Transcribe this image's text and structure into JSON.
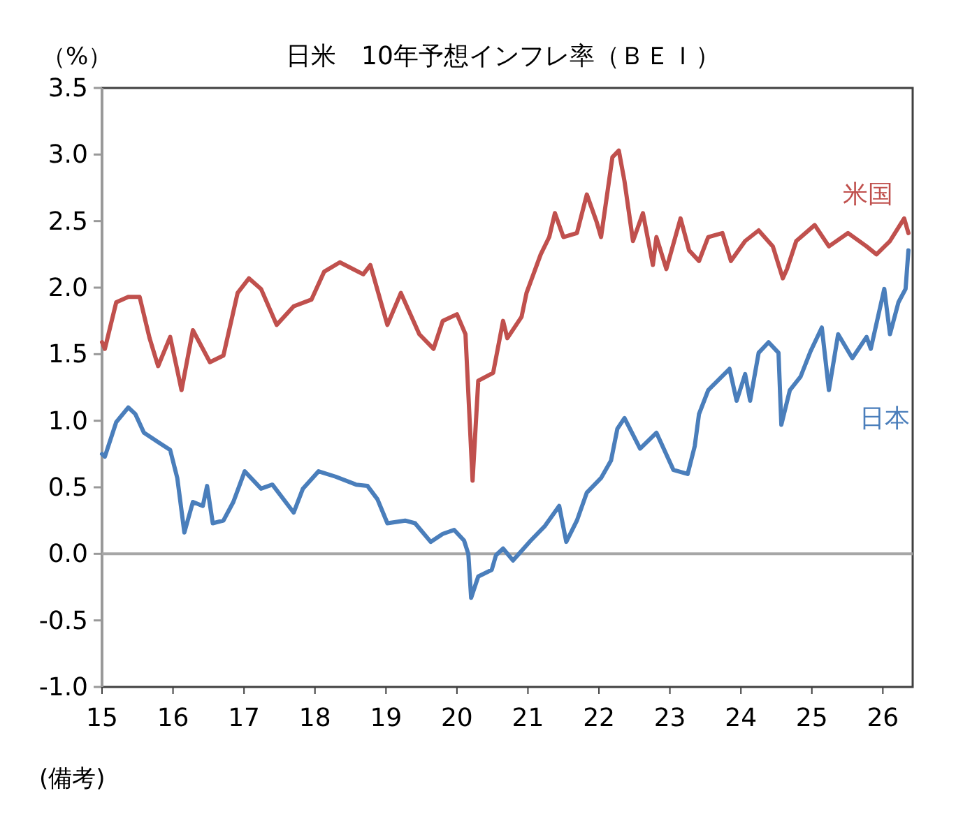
{
  "chart_data": {
    "type": "line",
    "title": "日米　10年予想インフレ率（ＢＥＩ）",
    "ylabel": "（%）",
    "xlim": [
      15,
      26.42
    ],
    "ylim": [
      -1.0,
      3.5
    ],
    "xticks": [
      15,
      16,
      17,
      18,
      19,
      20,
      21,
      22,
      23,
      24,
      25,
      26
    ],
    "yticks": [
      {
        "value": 3.5,
        "label": "3.5"
      },
      {
        "value": 3.0,
        "label": "3.0"
      },
      {
        "value": 2.5,
        "label": "2.5"
      },
      {
        "value": 2.0,
        "label": "2.0"
      },
      {
        "value": 1.5,
        "label": "1.5"
      },
      {
        "value": 1.0,
        "label": "1.0"
      },
      {
        "value": 0.5,
        "label": "0.5"
      },
      {
        "value": 0.0,
        "label": "0.0"
      },
      {
        "value": -0.5,
        "label": "-0.5"
      },
      {
        "value": -1.0,
        "label": "-1.0"
      }
    ],
    "ref_lines": [
      {
        "axis": "y",
        "value": 0,
        "color": "#a6a6a6"
      }
    ],
    "annotations": [
      "(備考)"
    ],
    "series": [
      {
        "name": "米国",
        "color": "#c0504d",
        "x": [
          15.0,
          15.04,
          15.2,
          15.37,
          15.53,
          15.67,
          15.79,
          15.96,
          16.12,
          16.28,
          16.52,
          16.71,
          16.91,
          17.07,
          17.24,
          17.46,
          17.7,
          17.95,
          18.13,
          18.35,
          18.68,
          18.78,
          19.02,
          19.21,
          19.47,
          19.67,
          19.8,
          20.0,
          20.12,
          20.22,
          20.3,
          20.51,
          20.65,
          20.71,
          20.91,
          20.98,
          21.18,
          21.3,
          21.38,
          21.5,
          21.69,
          21.83,
          21.97,
          22.03,
          22.19,
          22.28,
          22.36,
          22.48,
          22.62,
          22.76,
          22.81,
          22.95,
          23.15,
          23.27,
          23.41,
          23.54,
          23.74,
          23.86,
          24.06,
          24.25,
          24.45,
          24.59,
          24.65,
          24.78,
          25.04,
          25.24,
          25.51,
          25.77,
          25.91,
          26.1,
          26.3,
          26.36
        ],
        "values": [
          1.59,
          1.54,
          1.89,
          1.93,
          1.93,
          1.62,
          1.41,
          1.63,
          1.23,
          1.68,
          1.44,
          1.49,
          1.96,
          2.07,
          1.99,
          1.72,
          1.86,
          1.91,
          2.12,
          2.19,
          2.1,
          2.17,
          1.72,
          1.96,
          1.65,
          1.54,
          1.75,
          1.8,
          1.65,
          0.55,
          1.3,
          1.36,
          1.75,
          1.62,
          1.78,
          1.96,
          2.25,
          2.38,
          2.56,
          2.38,
          2.41,
          2.7,
          2.49,
          2.38,
          2.98,
          3.03,
          2.8,
          2.35,
          2.56,
          2.17,
          2.38,
          2.14,
          2.52,
          2.28,
          2.2,
          2.38,
          2.41,
          2.2,
          2.35,
          2.43,
          2.31,
          2.07,
          2.14,
          2.35,
          2.47,
          2.31,
          2.41,
          2.31,
          2.25,
          2.35,
          2.52,
          2.41
        ]
      },
      {
        "name": "日本",
        "color": "#4a7ebb",
        "x": [
          15.0,
          15.04,
          15.2,
          15.37,
          15.47,
          15.59,
          15.79,
          15.96,
          16.06,
          16.16,
          16.28,
          16.42,
          16.48,
          16.56,
          16.71,
          16.85,
          17.01,
          17.24,
          17.4,
          17.7,
          17.83,
          18.05,
          18.29,
          18.58,
          18.74,
          18.88,
          19.02,
          19.27,
          19.41,
          19.63,
          19.8,
          19.96,
          20.1,
          20.16,
          20.2,
          20.3,
          20.49,
          20.55,
          20.65,
          20.79,
          21.04,
          21.24,
          21.44,
          21.54,
          21.69,
          21.83,
          22.03,
          22.17,
          22.26,
          22.36,
          22.58,
          22.81,
          23.05,
          23.25,
          23.35,
          23.41,
          23.54,
          23.84,
          23.94,
          24.06,
          24.13,
          24.25,
          24.39,
          24.53,
          24.57,
          24.69,
          24.84,
          24.98,
          25.14,
          25.24,
          25.37,
          25.57,
          25.77,
          25.83,
          26.02,
          26.1,
          26.22,
          26.32,
          26.36
        ],
        "values": [
          0.75,
          0.73,
          0.99,
          1.1,
          1.05,
          0.91,
          0.84,
          0.78,
          0.57,
          0.16,
          0.39,
          0.36,
          0.51,
          0.23,
          0.25,
          0.39,
          0.62,
          0.49,
          0.52,
          0.31,
          0.49,
          0.62,
          0.58,
          0.52,
          0.51,
          0.41,
          0.23,
          0.25,
          0.23,
          0.09,
          0.15,
          0.18,
          0.1,
          0.0,
          -0.33,
          -0.17,
          -0.12,
          -0.01,
          0.04,
          -0.05,
          0.1,
          0.21,
          0.36,
          0.09,
          0.25,
          0.46,
          0.57,
          0.7,
          0.94,
          1.02,
          0.79,
          0.91,
          0.63,
          0.6,
          0.81,
          1.05,
          1.23,
          1.39,
          1.15,
          1.35,
          1.15,
          1.51,
          1.59,
          1.51,
          0.97,
          1.23,
          1.33,
          1.52,
          1.7,
          1.23,
          1.65,
          1.47,
          1.63,
          1.54,
          1.99,
          1.65,
          1.89,
          1.99,
          2.28
        ]
      }
    ]
  }
}
